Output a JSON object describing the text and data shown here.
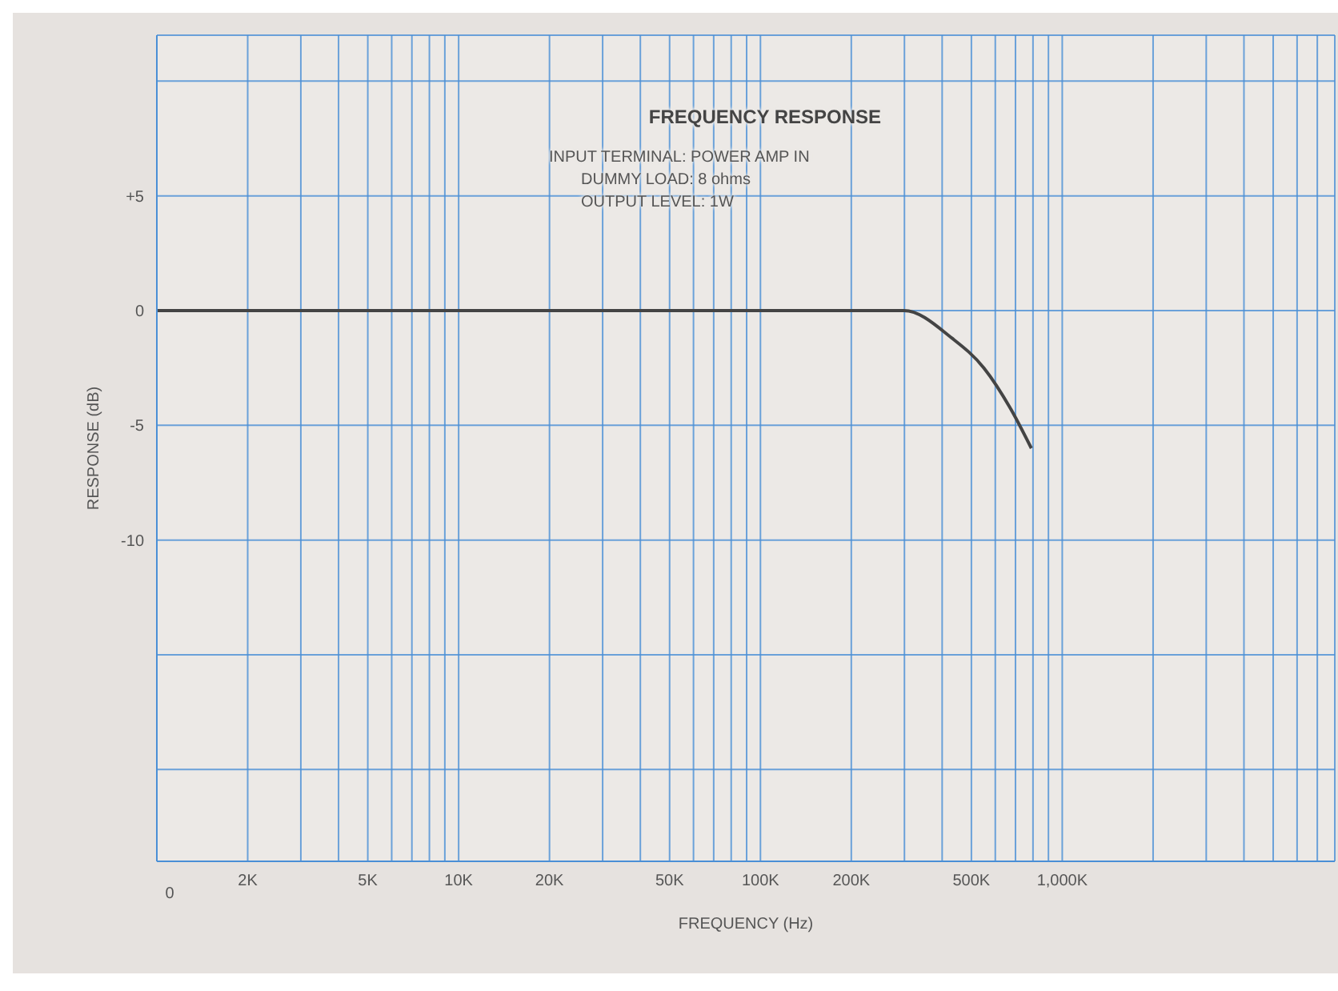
{
  "chart_data": {
    "type": "line",
    "title": "FREQUENCY RESPONSE",
    "annotations": [
      "INPUT TERMINAL: POWER AMP IN",
      "DUMMY LOAD: 8 ohms",
      "OUTPUT LEVEL: 1W",
      "0"
    ],
    "xlabel": "FREQUENCY (Hz)",
    "ylabel": "RESPONSE (dB)",
    "log": "x",
    "grid": true,
    "marker": "none",
    "line_style": "solid",
    "legend": false,
    "x": [
      1000,
      299000,
      431000,
      550000,
      676000,
      790000
    ],
    "series": [
      {
        "color": "#444444",
        "values": [
          0,
          0,
          -1.2,
          -2.5,
          -4.3,
          -6.0
        ]
      }
    ],
    "xlim": [
      1000,
      8000000
    ],
    "xticks": [
      {
        "value": 1000,
        "label": null
      },
      {
        "value": 2000,
        "label": "2K"
      },
      {
        "value": 3000,
        "label": null
      },
      {
        "value": 4000,
        "label": null
      },
      {
        "value": 5000,
        "label": "5K"
      },
      {
        "value": 6000,
        "label": null
      },
      {
        "value": 7000,
        "label": null
      },
      {
        "value": 8000,
        "label": null
      },
      {
        "value": 9000,
        "label": null
      },
      {
        "value": 10000,
        "label": "10K"
      },
      {
        "value": 20000,
        "label": "20K"
      },
      {
        "value": 30000,
        "label": null
      },
      {
        "value": 40000,
        "label": null
      },
      {
        "value": 50000,
        "label": "50K"
      },
      {
        "value": 60000,
        "label": null
      },
      {
        "value": 70000,
        "label": null
      },
      {
        "value": 80000,
        "label": null
      },
      {
        "value": 90000,
        "label": null
      },
      {
        "value": 100000,
        "label": "100K"
      },
      {
        "value": 200000,
        "label": "200K"
      },
      {
        "value": 300000,
        "label": null
      },
      {
        "value": 400000,
        "label": null
      },
      {
        "value": 500000,
        "label": "500K"
      },
      {
        "value": 600000,
        "label": null
      },
      {
        "value": 700000,
        "label": null
      },
      {
        "value": 800000,
        "label": null
      },
      {
        "value": 900000,
        "label": null
      },
      {
        "value": 1000000,
        "label": "1,000K"
      },
      {
        "value": 2000000,
        "label": null
      },
      {
        "value": 3000000,
        "label": null
      },
      {
        "value": 4000000,
        "label": null
      },
      {
        "value": 5000000,
        "label": null
      },
      {
        "value": 6000000,
        "label": null
      },
      {
        "value": 7000000,
        "label": null
      }
    ],
    "ylim": [
      -24,
      12
    ],
    "yticks": [
      {
        "value": 10,
        "label": null
      },
      {
        "value": 5,
        "label": "+5"
      },
      {
        "value": 0,
        "label": "0"
      },
      {
        "value": -5,
        "label": "-5"
      },
      {
        "value": -10,
        "label": "-10"
      },
      {
        "value": -15,
        "label": null
      },
      {
        "value": -20,
        "label": null
      }
    ]
  }
}
